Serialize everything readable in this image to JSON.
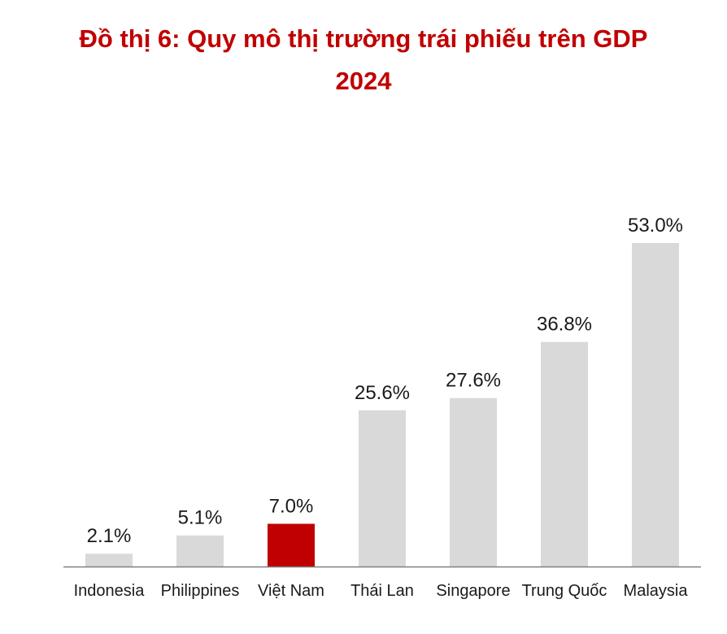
{
  "chart_data": {
    "type": "bar",
    "title_lines": [
      "Đồ thị 6: Quy mô thị trường trái phiếu trên GDP",
      "2024"
    ],
    "xlabel": "",
    "ylabel": "",
    "categories": [
      "Indonesia",
      "Philippines",
      "Việt Nam",
      "Thái Lan",
      "Singapore",
      "Trung Quốc",
      "Malaysia"
    ],
    "values": [
      2.1,
      5.1,
      7.0,
      25.6,
      27.6,
      36.8,
      53.0
    ],
    "data_labels": [
      "2.1%",
      "5.1%",
      "7.0%",
      "25.6%",
      "27.6%",
      "36.8%",
      "53.0%"
    ],
    "unit": "%",
    "ylim": [
      0,
      53
    ],
    "grid": false,
    "legend": "none",
    "colors": {
      "default_bar": "#d9d9d9",
      "highlight_bar": "#c00000",
      "highlight_category": "Việt Nam",
      "title": "#c00000",
      "axis": "#808080"
    }
  }
}
